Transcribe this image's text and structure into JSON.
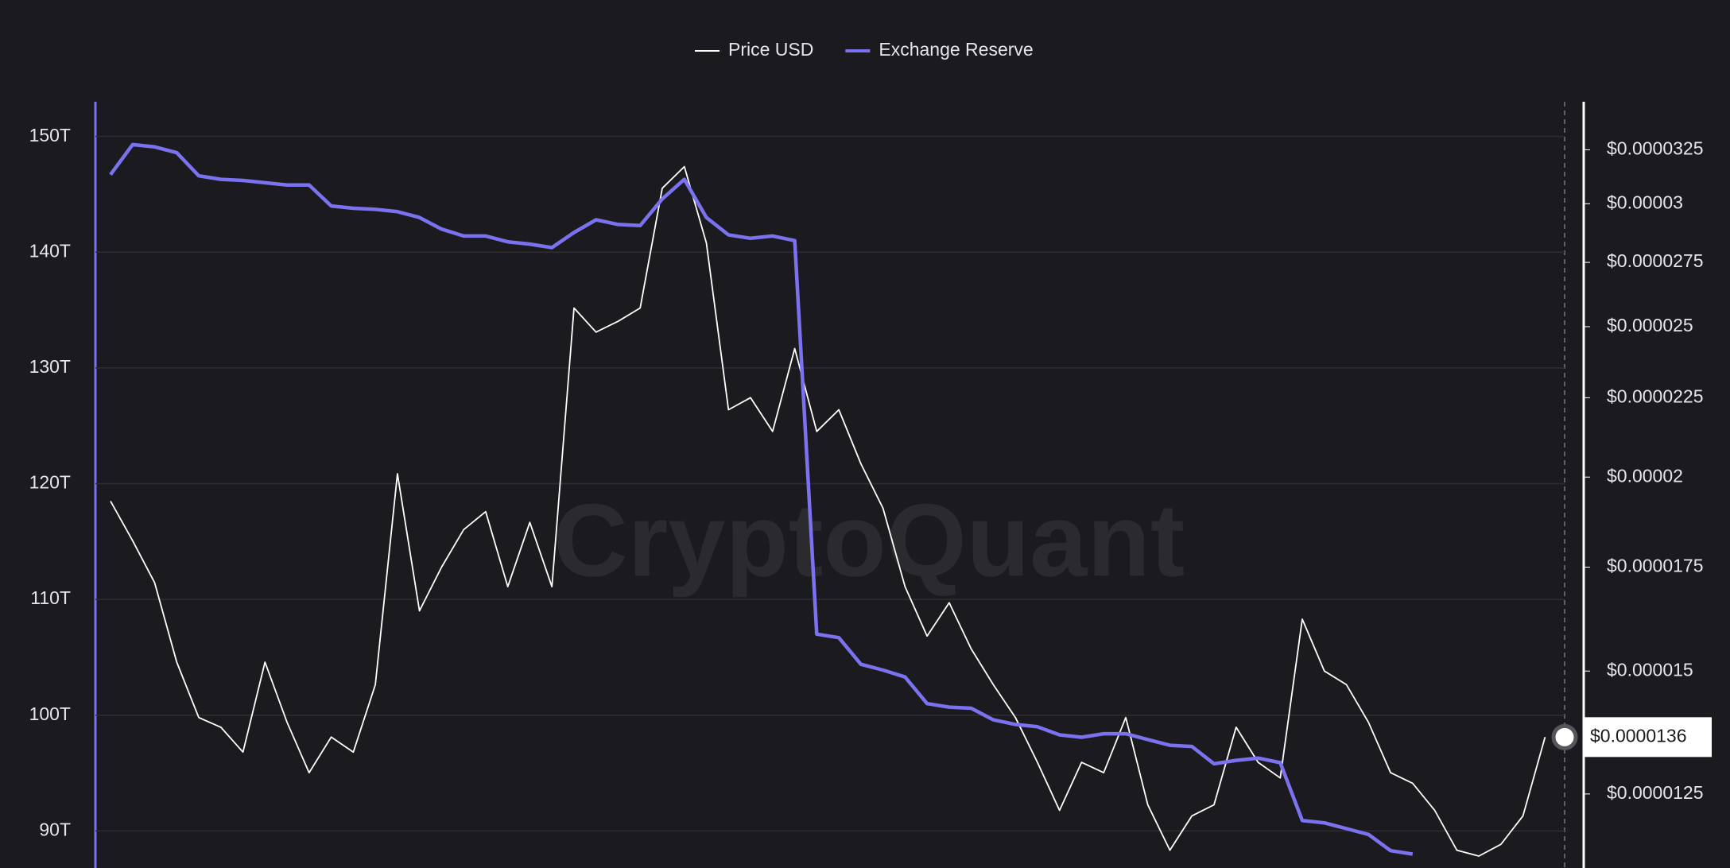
{
  "chart_data": {
    "type": "line",
    "watermark": "CryptoQuant",
    "legend": "top",
    "grid": true,
    "ylim": [
      86.8,
      153
    ],
    "yticks": [
      {
        "value": 90,
        "label": "90T"
      },
      {
        "value": 100,
        "label": "100T"
      },
      {
        "value": 110,
        "label": "110T"
      },
      {
        "value": 120,
        "label": "120T"
      },
      {
        "value": 130,
        "label": "130T"
      },
      {
        "value": 140,
        "label": "140T"
      },
      {
        "value": 150,
        "label": "150T"
      }
    ],
    "y2lim": [
      1.12e-05,
      3.49e-05
    ],
    "y2_log": true,
    "y2ticks": [
      {
        "value": 1.25e-05,
        "label": "$0.0000125"
      },
      {
        "value": 1.5e-05,
        "label": "$0.000015"
      },
      {
        "value": 1.75e-05,
        "label": "$0.0000175"
      },
      {
        "value": 2e-05,
        "label": "$0.00002"
      },
      {
        "value": 2.25e-05,
        "label": "$0.0000225"
      },
      {
        "value": 2.5e-05,
        "label": "$0.000025"
      },
      {
        "value": 2.75e-05,
        "label": "$0.0000275"
      },
      {
        "value": 3e-05,
        "label": "$0.00003"
      },
      {
        "value": 3.25e-05,
        "label": "$0.0000325"
      }
    ],
    "last_value": {
      "value": 1.36e-05,
      "label": "$0.0000136"
    },
    "series": [
      {
        "name": "Price USD",
        "color": "#ffffff",
        "axis": "y2",
        "values": [
          1.93e-05,
          1.82e-05,
          1.71e-05,
          1.52e-05,
          1.4e-05,
          1.38e-05,
          1.33e-05,
          1.52e-05,
          1.39e-05,
          1.29e-05,
          1.36e-05,
          1.33e-05,
          1.47e-05,
          2.01e-05,
          1.64e-05,
          1.75e-05,
          1.85e-05,
          1.9e-05,
          1.7e-05,
          1.87e-05,
          1.7e-05,
          2.57e-05,
          2.48e-05,
          2.52e-05,
          2.57e-05,
          3.07e-05,
          3.17e-05,
          2.83e-05,
          2.21e-05,
          2.25e-05,
          2.14e-05,
          2.42e-05,
          2.14e-05,
          2.21e-05,
          2.04e-05,
          1.91e-05,
          1.7e-05,
          1.58e-05,
          1.66e-05,
          1.55e-05,
          1.47e-05,
          1.4e-05,
          1.31e-05,
          1.22e-05,
          1.31e-05,
          1.29e-05,
          1.4e-05,
          1.23e-05,
          1.15e-05,
          1.21e-05,
          1.23e-05,
          1.38e-05,
          1.31e-05,
          1.28e-05,
          1.62e-05,
          1.5e-05,
          1.47e-05,
          1.39e-05,
          1.29e-05,
          1.27e-05,
          1.22e-05,
          1.15e-05,
          1.14e-05,
          1.16e-05,
          1.21e-05,
          1.36e-05
        ]
      },
      {
        "name": "Exchange Reserve",
        "color": "#7b72f0",
        "axis": "y",
        "values": [
          146.7,
          149.3,
          149.1,
          148.6,
          146.6,
          146.3,
          146.2,
          146.0,
          145.8,
          145.8,
          144.0,
          143.8,
          143.7,
          143.5,
          143.0,
          142.0,
          141.4,
          141.4,
          140.9,
          140.7,
          140.4,
          141.7,
          142.8,
          142.4,
          142.3,
          144.6,
          146.3,
          143.0,
          141.5,
          141.2,
          141.4,
          141.0,
          107.0,
          106.7,
          104.4,
          103.9,
          103.3,
          101.0,
          100.7,
          100.6,
          99.6,
          99.2,
          99.0,
          98.3,
          98.1,
          98.4,
          98.4,
          97.9,
          97.4,
          97.3,
          95.8,
          96.1,
          96.3,
          95.9,
          90.9,
          90.7,
          90.2,
          89.7,
          88.3,
          88.0,
          null,
          null,
          null,
          null,
          null,
          null
        ]
      }
    ]
  }
}
